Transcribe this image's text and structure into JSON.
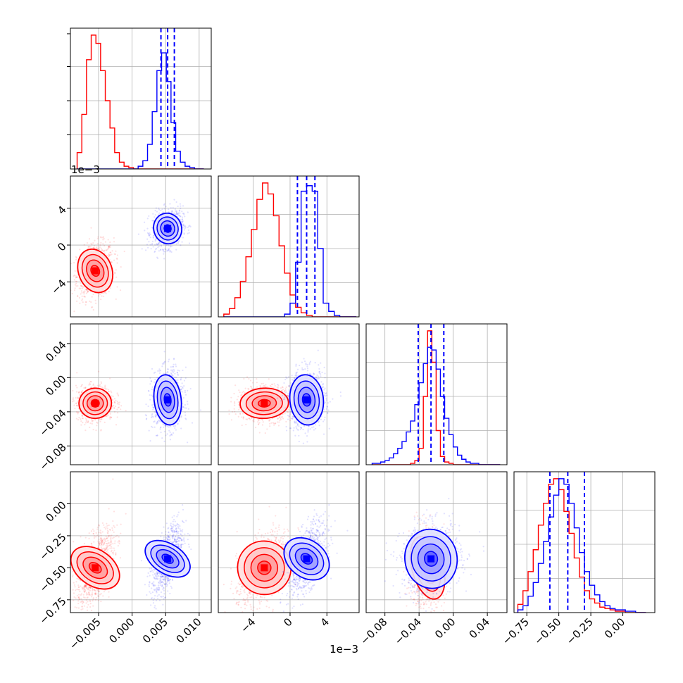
{
  "colors": {
    "series_a": "#ff0000",
    "series_b": "#0000ff",
    "grid": "#b0b0b0"
  },
  "chart_data": {
    "type": "corner",
    "grid": true,
    "series": [
      {
        "color": "#ff0000",
        "mean": [
          -0.0055,
          -0.0028,
          -0.03,
          -0.5
        ],
        "sd": [
          0.0012,
          0.0013,
          0.009,
          0.13
        ]
      },
      {
        "color": "#0000ff",
        "mean": [
          0.0053,
          0.0018,
          -0.026,
          -0.43
        ],
        "sd": [
          0.001,
          0.0009,
          0.015,
          0.12
        ]
      }
    ],
    "parameters": [
      {
        "range": [
          -0.0092,
          0.0118
        ],
        "ticks": [
          -0.005,
          0.0,
          0.005,
          0.01
        ],
        "tick_labels": [
          "−0.005",
          "0.000",
          "0.005",
          "0.010"
        ]
      },
      {
        "range": [
          -0.0078,
          0.0075
        ],
        "ticks": [
          -0.004,
          0.0,
          0.004
        ],
        "tick_labels": [
          "−4",
          "0",
          "4"
        ],
        "offset_label": "1e−3"
      },
      {
        "range": [
          -0.102,
          0.063
        ],
        "ticks_y": [
          -0.08,
          -0.04,
          0.0,
          0.04
        ],
        "tick_labels_y": [
          "−0.08",
          "−0.04",
          "0.00",
          "0.04"
        ],
        "ticks_x": [
          -0.08,
          -0.04,
          0.0,
          0.04
        ],
        "tick_labels_x": [
          "−0.08",
          "−0.04",
          "0.00",
          "0.04"
        ]
      },
      {
        "range": [
          -0.85,
          0.25
        ],
        "ticks_y": [
          -0.75,
          -0.5,
          -0.25,
          0.0
        ],
        "tick_labels_y": [
          "−0.75",
          "−0.50",
          "−0.25",
          "0.00"
        ],
        "ticks_x": [
          -0.75,
          -0.5,
          -0.25,
          0.0
        ],
        "tick_labels_x": [
          "−0.75",
          "−0.50",
          "−0.25",
          "0.00"
        ]
      }
    ],
    "quantile_lines": [
      [
        0.0043,
        0.0053,
        0.0063
      ],
      [
        0.0008,
        0.0018,
        0.0027
      ],
      [
        -0.041,
        -0.026,
        -0.011
      ],
      [
        -0.57,
        -0.43,
        -0.3
      ]
    ],
    "histograms": [
      {
        "bins": [
          -0.0082,
          -0.0075,
          -0.0068,
          -0.0061,
          -0.0054,
          -0.0047,
          -0.004,
          -0.0033,
          -0.0026,
          -0.0019,
          -0.0012,
          -0.0005,
          0.0002,
          0.0009,
          0.0016,
          0.0023,
          0.003,
          0.0037,
          0.0044,
          0.0051,
          0.0058,
          0.0065,
          0.0072,
          0.0079,
          0.0086,
          0.0093,
          0.01,
          0.0107
        ],
        "a": [
          0.12,
          0.4,
          0.8,
          0.98,
          0.92,
          0.72,
          0.5,
          0.3,
          0.12,
          0.05,
          0.02,
          0.01,
          0,
          0,
          0,
          0,
          0,
          0,
          0,
          0,
          0,
          0,
          0,
          0,
          0,
          0,
          0
        ],
        "b": [
          0,
          0,
          0,
          0,
          0,
          0,
          0,
          0,
          0,
          0,
          0,
          0,
          0,
          0.02,
          0.06,
          0.18,
          0.42,
          0.72,
          0.85,
          0.64,
          0.34,
          0.13,
          0.05,
          0.02,
          0.01,
          0,
          0
        ]
      },
      {
        "bins": [
          -0.0072,
          -0.0066,
          -0.006,
          -0.0054,
          -0.0048,
          -0.0042,
          -0.0036,
          -0.003,
          -0.0024,
          -0.0018,
          -0.0012,
          -0.0006,
          0.0,
          0.0006,
          0.0012,
          0.0018,
          0.0024,
          0.003,
          0.0036,
          0.0042,
          0.0048,
          0.0054,
          0.006,
          0.0066,
          0.0072
        ],
        "a": [
          0.02,
          0.06,
          0.14,
          0.26,
          0.44,
          0.64,
          0.86,
          0.98,
          0.9,
          0.74,
          0.52,
          0.32,
          0.16,
          0.07,
          0.03,
          0.01,
          0,
          0,
          0,
          0,
          0,
          0,
          0,
          0
        ],
        "b": [
          0,
          0,
          0,
          0,
          0,
          0,
          0,
          0,
          0,
          0,
          0,
          0.02,
          0.1,
          0.4,
          0.92,
          0.96,
          0.92,
          0.5,
          0.1,
          0.04,
          0.01,
          0,
          0,
          0
        ]
      },
      {
        "bins": [
          -0.095,
          -0.09,
          -0.085,
          -0.08,
          -0.075,
          -0.07,
          -0.065,
          -0.06,
          -0.055,
          -0.05,
          -0.045,
          -0.04,
          -0.035,
          -0.03,
          -0.025,
          -0.02,
          -0.015,
          -0.01,
          -0.005,
          0.0,
          0.005,
          0.01,
          0.015,
          0.02,
          0.025,
          0.03,
          0.035,
          0.04,
          0.045,
          0.05,
          0.055
        ],
        "a": [
          0,
          0,
          0,
          0,
          0,
          0,
          0,
          0,
          0,
          0.01,
          0.03,
          0.12,
          0.5,
          0.98,
          0.75,
          0.25,
          0.06,
          0.02,
          0.01,
          0,
          0,
          0,
          0,
          0,
          0,
          0,
          0,
          0,
          0,
          0
        ],
        "b": [
          0.01,
          0.01,
          0.02,
          0.03,
          0.05,
          0.08,
          0.12,
          0.17,
          0.24,
          0.32,
          0.44,
          0.6,
          0.74,
          0.86,
          0.84,
          0.7,
          0.5,
          0.34,
          0.22,
          0.13,
          0.07,
          0.04,
          0.02,
          0.01,
          0.01,
          0,
          0,
          0,
          0,
          0
        ]
      },
      {
        "bins": [
          -0.82,
          -0.78,
          -0.74,
          -0.7,
          -0.66,
          -0.62,
          -0.58,
          -0.54,
          -0.5,
          -0.46,
          -0.42,
          -0.38,
          -0.34,
          -0.3,
          -0.26,
          -0.22,
          -0.18,
          -0.14,
          -0.1,
          -0.06,
          -0.02,
          0.02,
          0.06,
          0.1,
          0.14,
          0.18
        ],
        "a": [
          0.06,
          0.16,
          0.3,
          0.46,
          0.64,
          0.8,
          0.94,
          0.98,
          0.9,
          0.74,
          0.58,
          0.4,
          0.26,
          0.16,
          0.1,
          0.07,
          0.04,
          0.03,
          0.02,
          0.01,
          0.01,
          0,
          0,
          0,
          0
        ],
        "b": [
          0.02,
          0.05,
          0.12,
          0.22,
          0.36,
          0.52,
          0.7,
          0.86,
          0.98,
          0.94,
          0.8,
          0.62,
          0.44,
          0.3,
          0.2,
          0.13,
          0.08,
          0.05,
          0.03,
          0.02,
          0.02,
          0.01,
          0.01,
          0,
          0
        ]
      }
    ]
  }
}
